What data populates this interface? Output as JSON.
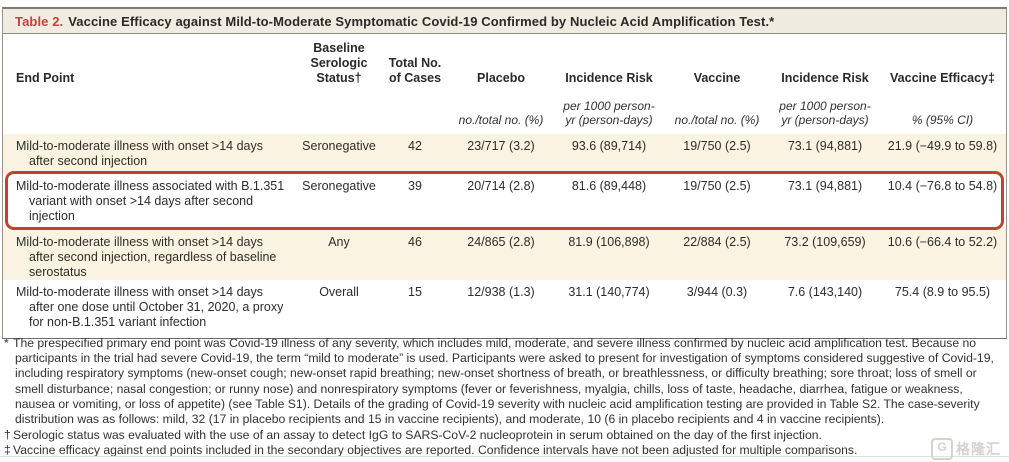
{
  "title": {
    "label": "Table 2.",
    "text": "Vaccine Efficacy against Mild-to-Moderate Symptomatic Covid-19 Confirmed by Nucleic Acid Amplification Test.*"
  },
  "table": {
    "columns": [
      {
        "label": "End Point",
        "sub": ""
      },
      {
        "label": "Baseline Serologic Status†",
        "sub": ""
      },
      {
        "label": "Total No. of Cases",
        "sub": ""
      },
      {
        "label": "Placebo",
        "sub": "no./total no. (%)"
      },
      {
        "label": "Incidence Risk",
        "sub": "per 1000 person-yr (person-days)"
      },
      {
        "label": "Vaccine",
        "sub": "no./total no. (%)"
      },
      {
        "label": "Incidence Risk",
        "sub": "per 1000 person-yr (person-days)"
      },
      {
        "label": "Vaccine Efficacy‡",
        "sub": "% (95% CI)"
      }
    ],
    "rows": [
      {
        "end_point": "Mild-to-moderate illness with onset >14 days after second injection",
        "serostatus": "Seronegative",
        "total_cases": "42",
        "placebo": "23/717 (3.2)",
        "placebo_incidence": "93.6 (89,714)",
        "vaccine": "19/750 (2.5)",
        "vaccine_incidence": "73.1 (94,881)",
        "efficacy": "21.9 (−49.9 to 59.8)"
      },
      {
        "end_point": "Mild-to-moderate illness associated with B.1.351 variant with onset >14 days after second injection",
        "serostatus": "Seronegative",
        "total_cases": "39",
        "placebo": "20/714 (2.8)",
        "placebo_incidence": "81.6 (89,448)",
        "vaccine": "19/750 (2.5)",
        "vaccine_incidence": "73.1 (94,881)",
        "efficacy": "10.4 (−76.8 to 54.8)"
      },
      {
        "end_point": "Mild-to-moderate illness with onset >14 days after second injection, regardless of baseline serostatus",
        "serostatus": "Any",
        "total_cases": "46",
        "placebo": "24/865 (2.8)",
        "placebo_incidence": "81.9 (106,898)",
        "vaccine": "22/884 (2.5)",
        "vaccine_incidence": "73.2 (109,659)",
        "efficacy": "10.6 (−66.4 to 52.2)"
      },
      {
        "end_point": "Mild-to-moderate illness with onset >14 days after one dose until October 31, 2020, a proxy for non-B.1.351 variant infection",
        "serostatus": "Overall",
        "total_cases": "15",
        "placebo": "12/938 (1.3)",
        "placebo_incidence": "31.1 (140,774)",
        "vaccine": "3/944 (0.3)",
        "vaccine_incidence": "7.6 (143,140)",
        "efficacy": "75.4 (8.9 to 95.5)"
      }
    ]
  },
  "footnotes": [
    {
      "symbol": "*",
      "text": "The prespecified primary end point was Covid-19 illness of any severity, which includes mild, moderate, and severe illness confirmed by nucleic acid amplification test. Because no participants in the trial had severe Covid-19, the term “mild to moderate” is used. Participants were asked to present for investigation of symptoms considered suggestive of Covid-19, including respiratory symptoms (new-onset cough; new-onset rapid breathing; new-onset shortness of breath, or breathlessness, or difficulty breathing; sore throat; loss of smell or smell disturbance; nasal congestion; or runny nose) and nonrespiratory symptoms (fever or feverishness, myalgia, chills, loss of taste, headache, diarrhea, fatigue or weakness, nausea or vomiting, or loss of appetite) (see Table S1). Details of the grading of Covid-19 severity with nucleic acid amplification testing are provided in Table S2. The case-severity distribution was as follows: mild, 32 (17 in placebo recipients and 15 in vaccine recipients), and moderate, 10 (6 in placebo recipients and 4 in vaccine recipients)."
    },
    {
      "symbol": "†",
      "text": "Serologic status was evaluated with the use of an assay to detect IgG to SARS-CoV-2 nucleoprotein in serum obtained on the day of the first injection."
    },
    {
      "symbol": "‡",
      "text": "Vaccine efficacy against end points included in the secondary objectives are reported. Confidence intervals have not been adjusted for multiple comparisons."
    }
  ],
  "watermark": {
    "icon": "G",
    "text": "格隆汇"
  },
  "colors": {
    "title_label_red": "#bf4538",
    "title_bar_bg": "#f0ece1",
    "row_cream": "#fbf3e1",
    "highlight_red": "#c5402f"
  }
}
